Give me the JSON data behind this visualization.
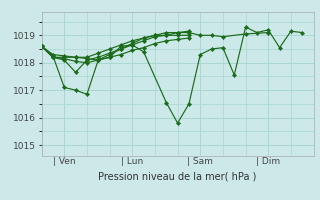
{
  "background_color": "#cce8e8",
  "grid_color": "#a8d8d0",
  "line_color": "#1a6b1a",
  "marker_color": "#1a6b1a",
  "xlabel": "Pression niveau de la mer( hPa )",
  "yticks": [
    1015,
    1016,
    1017,
    1018,
    1019
  ],
  "ylim": [
    1014.6,
    1019.85
  ],
  "xlim": [
    0,
    96
  ],
  "xtick_positions": [
    8,
    32,
    56,
    80
  ],
  "xtick_labels": [
    "Ven",
    "Lun",
    "Sam",
    "Dim"
  ],
  "series": [
    [
      1018.6,
      1018.2,
      1018.2,
      1018.2,
      1018.15,
      1018.1,
      1018.3,
      1018.5,
      1018.7,
      1018.9,
      1019.0,
      1019.1,
      1019.1,
      1019.1,
      1019.0,
      1019.0,
      1018.95,
      1019.05,
      1019.1
    ],
    [
      1018.6,
      1018.25,
      1017.1,
      1017.0,
      1016.85,
      1018.1,
      1018.2,
      1018.6,
      1018.65,
      1018.4,
      1016.55,
      1015.8,
      1016.5,
      1018.3,
      1018.5,
      1018.55,
      1017.55,
      1019.3,
      1019.1,
      1019.2,
      1018.55,
      1019.15,
      1019.1
    ],
    [
      1018.6,
      1018.2,
      1018.1,
      1017.65,
      1018.1,
      1018.2,
      1018.35,
      1018.5,
      1018.65,
      1018.8,
      1018.95,
      1019.0,
      1019.0,
      1019.0
    ],
    [
      1018.6,
      1018.2,
      1018.15,
      1018.05,
      1018.0,
      1018.1,
      1018.2,
      1018.3,
      1018.45,
      1018.55,
      1018.7,
      1018.8,
      1018.85,
      1018.9
    ],
    [
      1018.6,
      1018.3,
      1018.25,
      1018.2,
      1018.2,
      1018.35,
      1018.5,
      1018.65,
      1018.8,
      1018.9,
      1019.0,
      1019.0,
      1019.1,
      1019.15
    ]
  ],
  "series_x": [
    [
      0,
      4,
      8,
      12,
      16,
      20,
      24,
      28,
      32,
      36,
      40,
      44,
      48,
      52,
      56,
      60,
      64,
      72,
      80
    ],
    [
      0,
      4,
      8,
      12,
      16,
      20,
      24,
      28,
      32,
      36,
      44,
      48,
      52,
      56,
      60,
      64,
      68,
      72,
      76,
      80,
      84,
      88,
      92
    ],
    [
      0,
      4,
      8,
      12,
      16,
      20,
      24,
      28,
      32,
      36,
      40,
      44,
      48,
      52
    ],
    [
      0,
      4,
      8,
      12,
      16,
      20,
      24,
      28,
      32,
      36,
      40,
      44,
      48,
      52
    ],
    [
      0,
      4,
      8,
      12,
      16,
      20,
      24,
      28,
      32,
      36,
      40,
      44,
      48,
      52
    ]
  ],
  "figsize": [
    3.2,
    2.0
  ],
  "dpi": 100
}
